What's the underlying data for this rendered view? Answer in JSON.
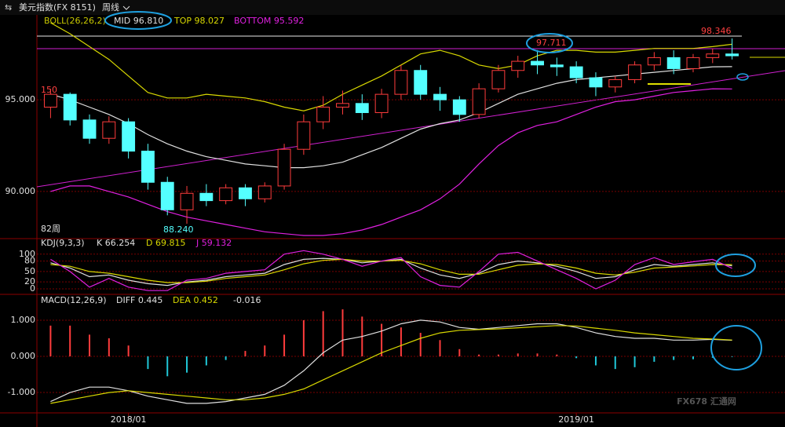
{
  "header": {
    "title": "美元指数(FX 8151)",
    "period": "周线"
  },
  "watermark": "FX678 汇通网",
  "chart_data": [
    {
      "type": "candlestick",
      "title": "BOLL(26,26,2)",
      "categories": [
        null,
        null,
        null,
        null,
        "2018/01",
        null,
        null,
        null,
        null,
        null,
        null,
        null,
        null,
        null,
        null,
        null,
        null,
        null,
        null,
        null,
        null,
        null,
        null,
        null,
        null,
        null,
        null,
        "2019/01",
        null,
        null,
        null,
        null,
        null,
        null,
        null,
        null
      ],
      "open": [
        94.6,
        95.3,
        93.9,
        92.9,
        93.8,
        92.2,
        90.5,
        89.0,
        89.9,
        89.5,
        90.2,
        89.6,
        90.3,
        92.3,
        93.8,
        94.6,
        94.8,
        94.3,
        95.3,
        96.6,
        95.3,
        95.0,
        94.2,
        95.6,
        96.6,
        97.1,
        96.9,
        96.8,
        96.2,
        95.7,
        96.1,
        96.9,
        97.3,
        96.7,
        97.3,
        97.5
      ],
      "high": [
        95.6,
        95.4,
        94.2,
        94.1,
        94.0,
        92.6,
        90.8,
        90.3,
        90.4,
        90.4,
        90.4,
        90.5,
        92.6,
        94.2,
        95.2,
        95.5,
        95.3,
        95.6,
        96.9,
        96.9,
        95.7,
        95.2,
        95.9,
        96.9,
        97.4,
        97.711,
        97.3,
        97.1,
        96.5,
        96.3,
        97.1,
        97.6,
        97.7,
        97.5,
        97.8,
        98.346
      ],
      "low": [
        94.0,
        93.6,
        92.6,
        92.6,
        91.8,
        90.1,
        88.7,
        88.24,
        89.2,
        89.3,
        89.2,
        89.4,
        90.1,
        92.0,
        93.4,
        94.2,
        93.9,
        94.0,
        95.0,
        95.0,
        94.4,
        93.8,
        94.0,
        95.4,
        96.2,
        96.4,
        96.3,
        95.9,
        95.2,
        95.4,
        95.9,
        96.6,
        96.4,
        96.5,
        97.0,
        97.2
      ],
      "close": [
        95.3,
        93.9,
        92.9,
        93.8,
        92.2,
        90.5,
        89.0,
        89.9,
        89.5,
        90.2,
        89.6,
        90.3,
        92.3,
        93.8,
        94.6,
        94.8,
        94.3,
        95.3,
        96.6,
        95.3,
        95.0,
        94.2,
        95.6,
        96.6,
        97.1,
        96.9,
        96.8,
        96.2,
        95.7,
        96.1,
        96.9,
        97.3,
        96.7,
        97.3,
        97.5,
        97.4
      ],
      "up_color": "#ff3c3c",
      "down_color": "#54ffff",
      "series": [
        {
          "name": "MID 96.810",
          "color": "#e0e0e0",
          "kind": "line",
          "values": [
            95.3,
            95.0,
            94.6,
            94.2,
            93.7,
            93.1,
            92.6,
            92.2,
            91.9,
            91.7,
            91.5,
            91.4,
            91.3,
            91.3,
            91.4,
            91.6,
            92.0,
            92.4,
            92.9,
            93.4,
            93.7,
            93.9,
            94.3,
            94.8,
            95.3,
            95.6,
            95.9,
            96.1,
            96.2,
            96.3,
            96.4,
            96.5,
            96.6,
            96.7,
            96.8,
            96.81
          ]
        },
        {
          "name": "TOP 98.027",
          "color": "#d8d800",
          "kind": "line",
          "values": [
            99.2,
            98.6,
            97.9,
            97.2,
            96.3,
            95.4,
            95.1,
            95.1,
            95.3,
            95.2,
            95.1,
            94.9,
            94.6,
            94.4,
            94.7,
            95.3,
            95.8,
            96.3,
            96.9,
            97.5,
            97.7,
            97.4,
            96.9,
            96.7,
            96.9,
            97.4,
            97.7,
            97.7,
            97.6,
            97.6,
            97.7,
            97.8,
            97.8,
            97.8,
            97.9,
            98.027
          ]
        },
        {
          "name": "BOTTOM 95.592",
          "color": "#e020e0",
          "kind": "line",
          "values": [
            90.0,
            90.3,
            90.3,
            90.0,
            89.7,
            89.3,
            88.9,
            88.6,
            88.4,
            88.2,
            88.0,
            87.8,
            87.7,
            87.6,
            87.6,
            87.7,
            87.9,
            88.2,
            88.6,
            89.0,
            89.6,
            90.4,
            91.5,
            92.5,
            93.2,
            93.6,
            93.8,
            94.2,
            94.6,
            94.9,
            95.0,
            95.2,
            95.4,
            95.5,
            95.6,
            95.592
          ]
        }
      ],
      "annotations": [
        "150",
        "82周",
        "88.240",
        "97.711",
        "98.346"
      ],
      "ylim": [
        87.6,
        100.1
      ],
      "yticks": [
        {
          "value": 95,
          "label": "95.000"
        },
        {
          "value": 90,
          "label": "90.000"
        }
      ],
      "grid": true
    },
    {
      "type": "line",
      "title": "KDJ(9,3,3)",
      "series": [
        {
          "name": "K 66.254",
          "color": "#e0e0e0",
          "kind": "line",
          "values": [
            75,
            60,
            35,
            40,
            25,
            15,
            10,
            20,
            25,
            35,
            40,
            45,
            70,
            85,
            88,
            85,
            75,
            80,
            85,
            60,
            40,
            30,
            45,
            70,
            80,
            75,
            65,
            50,
            30,
            35,
            55,
            70,
            65,
            70,
            75,
            66.254
          ]
        },
        {
          "name": "D 69.815",
          "color": "#d8d800",
          "kind": "line",
          "values": [
            70,
            65,
            50,
            45,
            35,
            25,
            18,
            18,
            22,
            30,
            35,
            40,
            55,
            72,
            82,
            85,
            80,
            80,
            82,
            72,
            55,
            42,
            42,
            55,
            68,
            72,
            70,
            60,
            45,
            40,
            48,
            60,
            63,
            66,
            70,
            69.815
          ]
        },
        {
          "name": "J 59.132",
          "color": "#e020e0",
          "kind": "line",
          "values": [
            85,
            50,
            5,
            30,
            5,
            -5,
            -5,
            25,
            30,
            45,
            50,
            55,
            100,
            110,
            100,
            85,
            65,
            80,
            90,
            35,
            10,
            5,
            50,
            100,
            105,
            80,
            55,
            30,
            0,
            25,
            70,
            90,
            70,
            78,
            85,
            59.132
          ]
        }
      ],
      "ylim": [
        -9,
        113
      ],
      "yticks": [
        100,
        80,
        50,
        20,
        0
      ],
      "grid": true
    },
    {
      "type": "combo",
      "title": "MACD(12,26,9)",
      "series": [
        {
          "name": "DIFF 0.445",
          "color": "#e0e0e0",
          "kind": "line",
          "values": [
            -1.25,
            -1.0,
            -0.85,
            -0.85,
            -0.95,
            -1.1,
            -1.2,
            -1.3,
            -1.3,
            -1.25,
            -1.15,
            -1.05,
            -0.8,
            -0.4,
            0.1,
            0.45,
            0.55,
            0.7,
            0.9,
            1.0,
            0.95,
            0.8,
            0.75,
            0.8,
            0.85,
            0.9,
            0.9,
            0.8,
            0.65,
            0.55,
            0.5,
            0.5,
            0.45,
            0.45,
            0.47,
            0.445
          ]
        },
        {
          "name": "DEA 0.452",
          "color": "#d8d800",
          "kind": "line",
          "values": [
            -1.3,
            -1.2,
            -1.1,
            -1.0,
            -0.95,
            -1.0,
            -1.05,
            -1.1,
            -1.15,
            -1.2,
            -1.2,
            -1.15,
            -1.05,
            -0.9,
            -0.65,
            -0.4,
            -0.15,
            0.1,
            0.3,
            0.5,
            0.65,
            0.72,
            0.74,
            0.76,
            0.79,
            0.82,
            0.85,
            0.84,
            0.78,
            0.72,
            0.65,
            0.6,
            0.55,
            0.5,
            0.48,
            0.452
          ]
        },
        {
          "name": "-0.016",
          "color": "#e0e0e0",
          "kind": "bar",
          "up_color": "#ff3c3c",
          "down_color": "#20c8d8",
          "values": [
            0.85,
            0.85,
            0.6,
            0.5,
            0.3,
            -0.35,
            -0.55,
            -0.45,
            -0.25,
            -0.1,
            0.15,
            0.3,
            0.6,
            1.0,
            1.25,
            1.3,
            1.1,
            0.9,
            0.8,
            0.65,
            0.45,
            0.2,
            0.05,
            0.05,
            0.08,
            0.08,
            0.05,
            -0.05,
            -0.25,
            -0.35,
            -0.3,
            -0.15,
            -0.1,
            -0.08,
            -0.04,
            -0.016
          ]
        }
      ],
      "ylim": [
        -1.65,
        1.65
      ],
      "yticks": [
        {
          "value": 1,
          "label": "1.000"
        },
        {
          "value": 0,
          "label": "0.000"
        },
        {
          "value": -1,
          "label": "-1.000"
        }
      ],
      "grid": true
    }
  ]
}
